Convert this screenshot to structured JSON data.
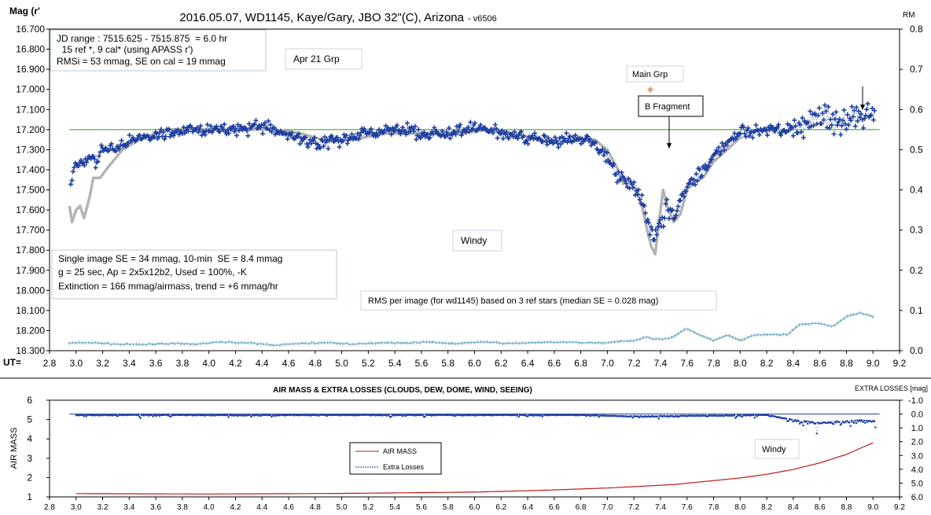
{
  "chart_data": [
    {
      "type": "scatter",
      "title": "2016.05.07,  WD1145, Kaye/Gary, JBO 32\"(C), Arizona",
      "version_tag": "- v6506",
      "ylabel": "Mag (r'",
      "ylabel_right": "RM",
      "xlabel": "UT=",
      "xlim": [
        2.8,
        9.2
      ],
      "ylim": [
        16.7,
        18.3
      ],
      "ylim_right": [
        0.0,
        0.8
      ],
      "x_ticks": [
        "2.8",
        "3.0",
        "3.2",
        "3.4",
        "3.6",
        "3.8",
        "4.0",
        "4.2",
        "4.4",
        "4.6",
        "4.8",
        "5.0",
        "5.2",
        "5.4",
        "5.6",
        "5.8",
        "6.0",
        "6.2",
        "6.4",
        "6.6",
        "6.8",
        "7.0",
        "7.2",
        "7.4",
        "7.6",
        "7.8",
        "8.0",
        "8.2",
        "8.4",
        "8.6",
        "8.8",
        "9.0",
        "9.2"
      ],
      "y_ticks": [
        "16.700",
        "16.800",
        "16.900",
        "17.000",
        "17.100",
        "17.200",
        "17.300",
        "17.400",
        "17.500",
        "17.600",
        "17.700",
        "17.800",
        "17.900",
        "18.000",
        "18.100",
        "18.200",
        "18.300"
      ],
      "y_ticks_right": [
        "0.8",
        "0.7",
        "0.6",
        "0.5",
        "0.4",
        "0.3",
        "0.2",
        "0.1",
        "0.0"
      ],
      "reference_line": 17.2,
      "info_box_top": [
        "JD range : 7515.625 - 7515.875  = 6.0 hr",
        "  15 ref *, 9 cal* (using APASS r')",
        "RMSi = 53 mmag, SE on cal = 19 mmag"
      ],
      "info_box_bottom": [
        "Single image SE = 34 mmag, 10-min  SE = 8.4 mmag",
        "g = 25 sec, Ap = 2x5x12b2, Used = 100%, -K",
        "Extinction = 166 mmag/airmass, trend = +6 mmag/hr"
      ],
      "annotations": {
        "apr21": "Apr 21 Grp",
        "main_grp": "Main Grp",
        "b_fragment": "B Fragment",
        "windy": "Windy",
        "rms_note": "RMS per image (for wd1145) based on 3 ref stars (median SE = 0.028 mag)"
      },
      "series_colors": {
        "mag": "#1f3fa0",
        "trend": "#b4b4b4",
        "rms": "#78aec4",
        "ref": "#2a9a2a",
        "main_grp": "#f0a070"
      },
      "mag_knots": [
        [
          2.95,
          17.48
        ],
        [
          3.0,
          17.38
        ],
        [
          3.05,
          17.36
        ],
        [
          3.1,
          17.33
        ],
        [
          3.15,
          17.36
        ],
        [
          3.2,
          17.3
        ],
        [
          3.3,
          17.3
        ],
        [
          3.4,
          17.26
        ],
        [
          3.6,
          17.22
        ],
        [
          3.8,
          17.2
        ],
        [
          4.0,
          17.21
        ],
        [
          4.4,
          17.18
        ],
        [
          4.6,
          17.23
        ],
        [
          4.8,
          17.27
        ],
        [
          5.0,
          17.25
        ],
        [
          5.2,
          17.22
        ],
        [
          5.4,
          17.2
        ],
        [
          5.6,
          17.22
        ],
        [
          5.8,
          17.22
        ],
        [
          6.0,
          17.18
        ],
        [
          6.2,
          17.22
        ],
        [
          6.4,
          17.24
        ],
        [
          6.6,
          17.26
        ],
        [
          6.8,
          17.24
        ],
        [
          6.95,
          17.3
        ],
        [
          7.05,
          17.38
        ],
        [
          7.15,
          17.47
        ],
        [
          7.25,
          17.53
        ],
        [
          7.3,
          17.66
        ],
        [
          7.35,
          17.78
        ],
        [
          7.4,
          17.66
        ],
        [
          7.45,
          17.6
        ],
        [
          7.5,
          17.62
        ],
        [
          7.55,
          17.54
        ],
        [
          7.6,
          17.47
        ],
        [
          7.7,
          17.42
        ],
        [
          7.8,
          17.33
        ],
        [
          7.9,
          17.27
        ],
        [
          8.0,
          17.21
        ],
        [
          8.2,
          17.2
        ],
        [
          8.4,
          17.2
        ],
        [
          8.6,
          17.14
        ],
        [
          8.8,
          17.16
        ],
        [
          9.0,
          17.13
        ]
      ],
      "trend_knots": [
        [
          2.95,
          17.58
        ],
        [
          2.97,
          17.66
        ],
        [
          3.0,
          17.6
        ],
        [
          3.03,
          17.58
        ],
        [
          3.06,
          17.64
        ],
        [
          3.1,
          17.54
        ],
        [
          3.13,
          17.44
        ],
        [
          3.18,
          17.44
        ],
        [
          3.25,
          17.38
        ],
        [
          3.35,
          17.3
        ],
        [
          3.5,
          17.24
        ],
        [
          3.7,
          17.2
        ],
        [
          3.9,
          17.2
        ],
        [
          4.2,
          17.2
        ],
        [
          4.5,
          17.2
        ],
        [
          4.7,
          17.22
        ],
        [
          4.9,
          17.26
        ],
        [
          5.1,
          17.25
        ],
        [
          5.3,
          17.22
        ],
        [
          5.5,
          17.22
        ],
        [
          5.7,
          17.22
        ],
        [
          5.9,
          17.22
        ],
        [
          6.1,
          17.2
        ],
        [
          6.3,
          17.22
        ],
        [
          6.5,
          17.25
        ],
        [
          6.7,
          17.26
        ],
        [
          6.9,
          17.25
        ],
        [
          7.0,
          17.3
        ],
        [
          7.08,
          17.4
        ],
        [
          7.12,
          17.47
        ],
        [
          7.16,
          17.44
        ],
        [
          7.22,
          17.5
        ],
        [
          7.26,
          17.58
        ],
        [
          7.3,
          17.7
        ],
        [
          7.33,
          17.78
        ],
        [
          7.36,
          17.82
        ],
        [
          7.39,
          17.65
        ],
        [
          7.42,
          17.5
        ],
        [
          7.45,
          17.58
        ],
        [
          7.5,
          17.66
        ],
        [
          7.55,
          17.62
        ],
        [
          7.6,
          17.5
        ],
        [
          7.66,
          17.46
        ],
        [
          7.72,
          17.44
        ],
        [
          7.8,
          17.36
        ],
        [
          7.9,
          17.3
        ],
        [
          8.0,
          17.24
        ]
      ],
      "rms_knots": [
        [
          2.95,
          0.019
        ],
        [
          3.1,
          0.02
        ],
        [
          3.3,
          0.016
        ],
        [
          3.5,
          0.015
        ],
        [
          3.7,
          0.018
        ],
        [
          3.9,
          0.016
        ],
        [
          4.1,
          0.022
        ],
        [
          4.3,
          0.019
        ],
        [
          4.5,
          0.014
        ],
        [
          4.7,
          0.018
        ],
        [
          4.9,
          0.02
        ],
        [
          5.1,
          0.016
        ],
        [
          5.3,
          0.02
        ],
        [
          5.5,
          0.019
        ],
        [
          5.65,
          0.022
        ],
        [
          5.85,
          0.017
        ],
        [
          6.05,
          0.022
        ],
        [
          6.25,
          0.018
        ],
        [
          6.45,
          0.02
        ],
        [
          6.65,
          0.021
        ],
        [
          6.85,
          0.02
        ],
        [
          7.0,
          0.02
        ],
        [
          7.2,
          0.025
        ],
        [
          7.3,
          0.035
        ],
        [
          7.35,
          0.028
        ],
        [
          7.45,
          0.03
        ],
        [
          7.5,
          0.035
        ],
        [
          7.6,
          0.055
        ],
        [
          7.7,
          0.038
        ],
        [
          7.8,
          0.025
        ],
        [
          7.9,
          0.038
        ],
        [
          8.0,
          0.025
        ],
        [
          8.1,
          0.038
        ],
        [
          8.2,
          0.04
        ],
        [
          8.35,
          0.04
        ],
        [
          8.45,
          0.065
        ],
        [
          8.6,
          0.068
        ],
        [
          8.7,
          0.06
        ],
        [
          8.8,
          0.085
        ],
        [
          8.9,
          0.095
        ],
        [
          9.0,
          0.085
        ]
      ]
    },
    {
      "type": "line",
      "title": "AIR MASS & EXTRA LOSSES (CLOUDS, DEW, DOME, WIND, SEEING)",
      "ylabel": "AIR MASS",
      "ylabel_right": "EXTRA LOSSES [mag]",
      "xlim": [
        2.8,
        9.2
      ],
      "ylim": [
        1,
        6
      ],
      "ylim_right": [
        6.0,
        -1.0
      ],
      "x_ticks": [
        "2.8",
        "3.0",
        "3.2",
        "3.4",
        "3.6",
        "3.8",
        "4.0",
        "4.2",
        "4.4",
        "4.6",
        "4.8",
        "5.0",
        "5.2",
        "5.4",
        "5.6",
        "5.8",
        "6.0",
        "6.2",
        "6.4",
        "6.6",
        "6.8",
        "7.0",
        "7.2",
        "7.4",
        "7.6",
        "7.8",
        "8.0",
        "8.2",
        "8.4",
        "8.6",
        "8.8",
        "9.0",
        "9.2"
      ],
      "y_ticks": [
        "6",
        "5",
        "4",
        "3",
        "2",
        "1"
      ],
      "y_ticks_right": [
        "-1.0",
        "0.0",
        "1.0",
        "2.0",
        "3.0",
        "4.0",
        "5.0",
        "6.0"
      ],
      "legend": [
        "AIR MASS",
        "Extra Losses"
      ],
      "annotation": "Windy",
      "series_colors": {
        "airmass": "#c01818",
        "extra": "#1f3fa0",
        "ref": "#1f3fa0"
      },
      "zero_line": 0.0,
      "airmass_knots": [
        [
          3.0,
          1.17
        ],
        [
          4.0,
          1.15
        ],
        [
          5.0,
          1.18
        ],
        [
          6.0,
          1.25
        ],
        [
          6.5,
          1.34
        ],
        [
          7.0,
          1.46
        ],
        [
          7.5,
          1.64
        ],
        [
          8.0,
          1.98
        ],
        [
          8.2,
          2.17
        ],
        [
          8.4,
          2.42
        ],
        [
          8.6,
          2.76
        ],
        [
          8.8,
          3.2
        ],
        [
          9.0,
          3.8
        ]
      ],
      "extra_knots": [
        [
          3.0,
          0.05
        ],
        [
          6.8,
          0.05
        ],
        [
          7.2,
          0.15
        ],
        [
          8.2,
          0.05
        ],
        [
          8.4,
          0.4
        ],
        [
          8.6,
          0.6
        ],
        [
          8.8,
          0.45
        ],
        [
          9.0,
          0.4
        ]
      ]
    }
  ]
}
